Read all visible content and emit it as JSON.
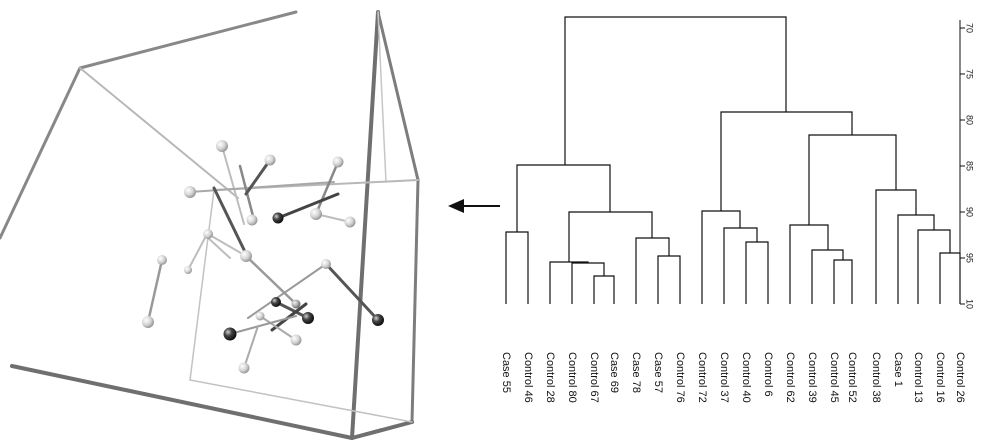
{
  "dendrogram": {
    "axis_ticks": [
      "70",
      "75",
      "80",
      "85",
      "90",
      "95",
      "10"
    ],
    "leaves": [
      "Case 55",
      "Control 46",
      "Control 28",
      "Control 80",
      "Control 67",
      "Case 69",
      "Case 78",
      "Case 57",
      "Control 76",
      "Control 72",
      "Control 37",
      "Control 40",
      "Control 6",
      "Control 62",
      "Control 39",
      "Control 45",
      "Control 52",
      "Control 38",
      "Case 1",
      "Control 13",
      "Control 16",
      "Control 26"
    ]
  },
  "colors": {
    "line": "#111111",
    "cube_edge": "#8a8a8a",
    "cube_edge_dark": "#6a6a6a"
  },
  "icons": {
    "arrow": "arrow-left-icon",
    "plot3d": "3d-scatter-plot"
  }
}
